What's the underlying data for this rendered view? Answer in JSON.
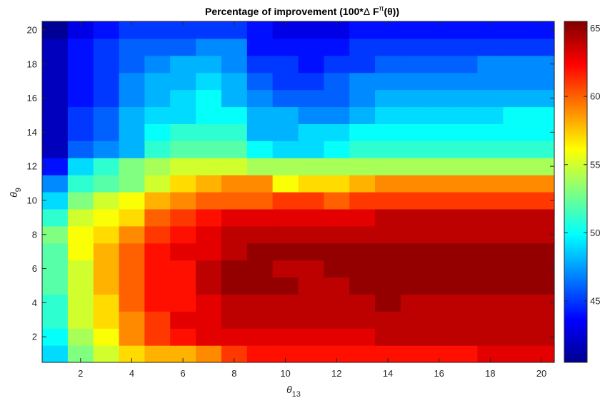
{
  "chart_data": {
    "type": "heatmap",
    "title_main": "Percentage of improvement (100*",
    "title_delta": "Δ",
    "title_f": "F",
    "title_pi": "π",
    "title_theta": "(θ))",
    "xlabel_symbol": "θ",
    "xlabel_sub": "13",
    "ylabel_symbol": "θ",
    "ylabel_sub": "9",
    "x_range": [
      1,
      20
    ],
    "y_range": [
      1,
      20
    ],
    "x_ticks": [
      "2",
      "4",
      "6",
      "8",
      "10",
      "12",
      "14",
      "16",
      "18",
      "20"
    ],
    "y_ticks": [
      "2",
      "4",
      "6",
      "8",
      "10",
      "12",
      "14",
      "16",
      "18",
      "20"
    ],
    "colorbar_ticks": [
      "45",
      "50",
      "55",
      "60",
      "65"
    ],
    "color_range": [
      40.5,
      65.5
    ],
    "colormap": "jet",
    "values": [
      [
        49,
        53,
        55,
        57,
        58,
        58,
        59,
        61,
        62,
        62,
        62,
        62,
        62,
        62,
        62,
        62,
        62,
        63,
        63,
        63
      ],
      [
        50,
        54,
        56,
        59,
        61,
        62,
        63,
        63,
        63,
        63,
        63,
        63,
        63,
        64,
        64,
        64,
        64,
        64,
        64,
        64
      ],
      [
        51,
        55,
        57,
        59,
        61,
        63,
        63,
        64,
        64,
        64,
        64,
        64,
        64,
        64,
        64,
        64,
        64,
        64,
        64,
        64
      ],
      [
        51,
        55,
        57,
        60,
        62,
        62,
        63,
        64,
        64,
        64,
        64,
        64,
        64,
        65,
        64,
        64,
        64,
        64,
        64,
        64
      ],
      [
        52,
        55,
        58,
        60,
        62,
        62,
        64,
        65,
        65,
        65,
        64,
        64,
        65,
        65,
        65,
        65,
        65,
        65,
        65,
        65
      ],
      [
        52,
        55,
        58,
        60,
        62,
        62,
        64,
        65,
        65,
        64,
        64,
        65,
        65,
        65,
        65,
        65,
        65,
        65,
        65,
        65
      ],
      [
        52,
        56,
        58,
        60,
        62,
        63,
        63,
        64,
        65,
        65,
        65,
        65,
        65,
        65,
        65,
        65,
        65,
        65,
        65,
        65
      ],
      [
        53,
        56,
        57,
        59,
        61,
        62,
        63,
        64,
        64,
        64,
        64,
        64,
        64,
        64,
        64,
        64,
        64,
        64,
        64,
        64
      ],
      [
        51,
        55,
        56,
        57,
        60,
        61,
        62,
        63,
        63,
        63,
        63,
        63,
        63,
        64,
        64,
        64,
        64,
        64,
        64,
        64
      ],
      [
        49,
        53,
        55,
        56,
        58,
        59,
        60,
        60,
        60,
        61,
        61,
        60,
        61,
        61,
        61,
        61,
        61,
        61,
        61,
        61
      ],
      [
        47,
        51,
        52,
        53,
        55,
        57,
        58,
        59,
        59,
        56,
        57,
        57,
        58,
        59,
        59,
        59,
        59,
        59,
        59,
        59
      ],
      [
        44,
        49,
        51,
        53,
        54,
        55,
        55,
        55,
        54,
        54,
        54,
        54,
        54,
        54,
        54,
        54,
        54,
        54,
        54,
        54
      ],
      [
        42,
        46,
        47,
        48,
        51,
        52,
        52,
        52,
        50,
        49,
        49,
        50,
        51,
        51,
        51,
        51,
        51,
        51,
        51,
        51
      ],
      [
        42,
        45,
        46,
        48,
        50,
        51,
        51,
        51,
        48,
        48,
        49,
        49,
        50,
        50,
        50,
        50,
        50,
        50,
        50,
        50
      ],
      [
        42,
        45,
        46,
        48,
        49,
        49,
        50,
        50,
        48,
        48,
        47,
        47,
        48,
        49,
        49,
        49,
        49,
        49,
        50,
        50
      ],
      [
        42,
        44,
        45,
        47,
        48,
        49,
        50,
        48,
        47,
        46,
        46,
        46,
        47,
        48,
        48,
        48,
        48,
        48,
        48,
        48
      ],
      [
        42,
        44,
        45,
        47,
        48,
        48,
        49,
        48,
        46,
        45,
        45,
        46,
        47,
        47,
        47,
        47,
        47,
        47,
        47,
        47
      ],
      [
        42,
        44,
        45,
        46,
        47,
        48,
        48,
        47,
        45,
        45,
        44,
        45,
        45,
        46,
        46,
        46,
        46,
        47,
        47,
        47
      ],
      [
        42,
        44,
        45,
        46,
        46,
        46,
        47,
        47,
        44,
        44,
        44,
        44,
        45,
        45,
        45,
        45,
        45,
        45,
        45,
        45
      ],
      [
        41,
        43,
        44,
        45,
        45,
        45,
        45,
        45,
        44,
        43,
        43,
        43,
        44,
        44,
        44,
        44,
        44,
        44,
        44,
        44
      ]
    ]
  }
}
